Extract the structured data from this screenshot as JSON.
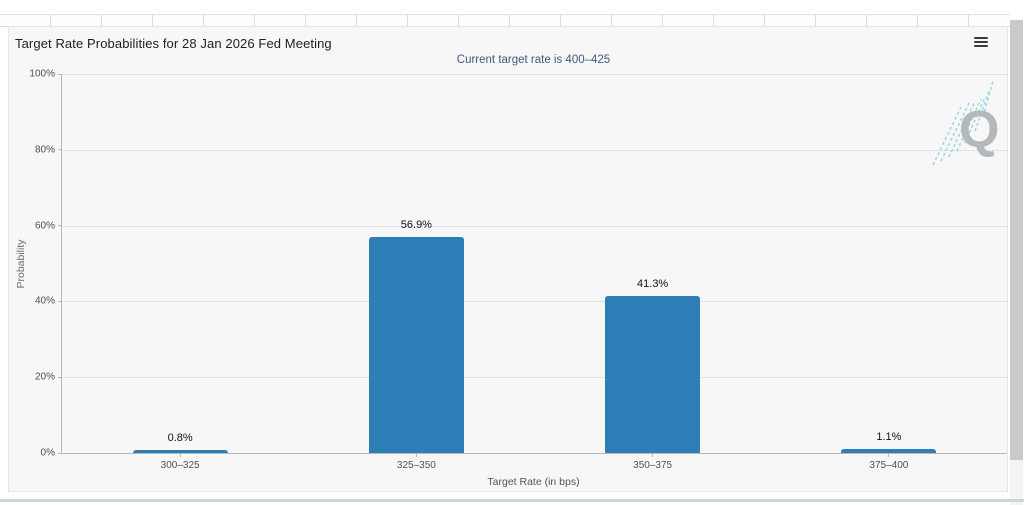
{
  "page": {
    "title": "Target Rate Probabilities for 28 Jan 2026 Fed Meeting",
    "subtitle": "Current target rate is 400–425",
    "menu_icon": "hamburger-icon",
    "watermark_letter": "Q"
  },
  "colors": {
    "bar": "#2d7eb6",
    "subtitle_text": "#44597e",
    "panel_background": "#f7f7f7",
    "grid_dotted": "#cfcfcf",
    "axis_line": "#b8b8b8",
    "watermark_gray": "#b3b8bb",
    "watermark_teal": "#93d5e2",
    "bottom_bar": "#ccd6da",
    "scrollbar_thumb": "#c9c9c9"
  },
  "chart_data": {
    "type": "bar",
    "title": "Target Rate Probabilities for 28 Jan 2026 Fed Meeting",
    "subtitle": "Current target rate is 400–425",
    "categories": [
      "300–325",
      "325–350",
      "350–375",
      "375–400"
    ],
    "values": [
      0.8,
      56.9,
      41.3,
      1.1
    ],
    "value_labels": [
      "0.8%",
      "56.9%",
      "41.3%",
      "1.1%"
    ],
    "xlabel": "Target Rate (in bps)",
    "ylabel": "Probability",
    "ylim": [
      0,
      100
    ],
    "yticks": [
      "0%",
      "20%",
      "40%",
      "60%",
      "80%",
      "100%"
    ],
    "grid": "horizontal-dotted",
    "legend_position": "none",
    "bar_color": "#2d7eb6"
  }
}
